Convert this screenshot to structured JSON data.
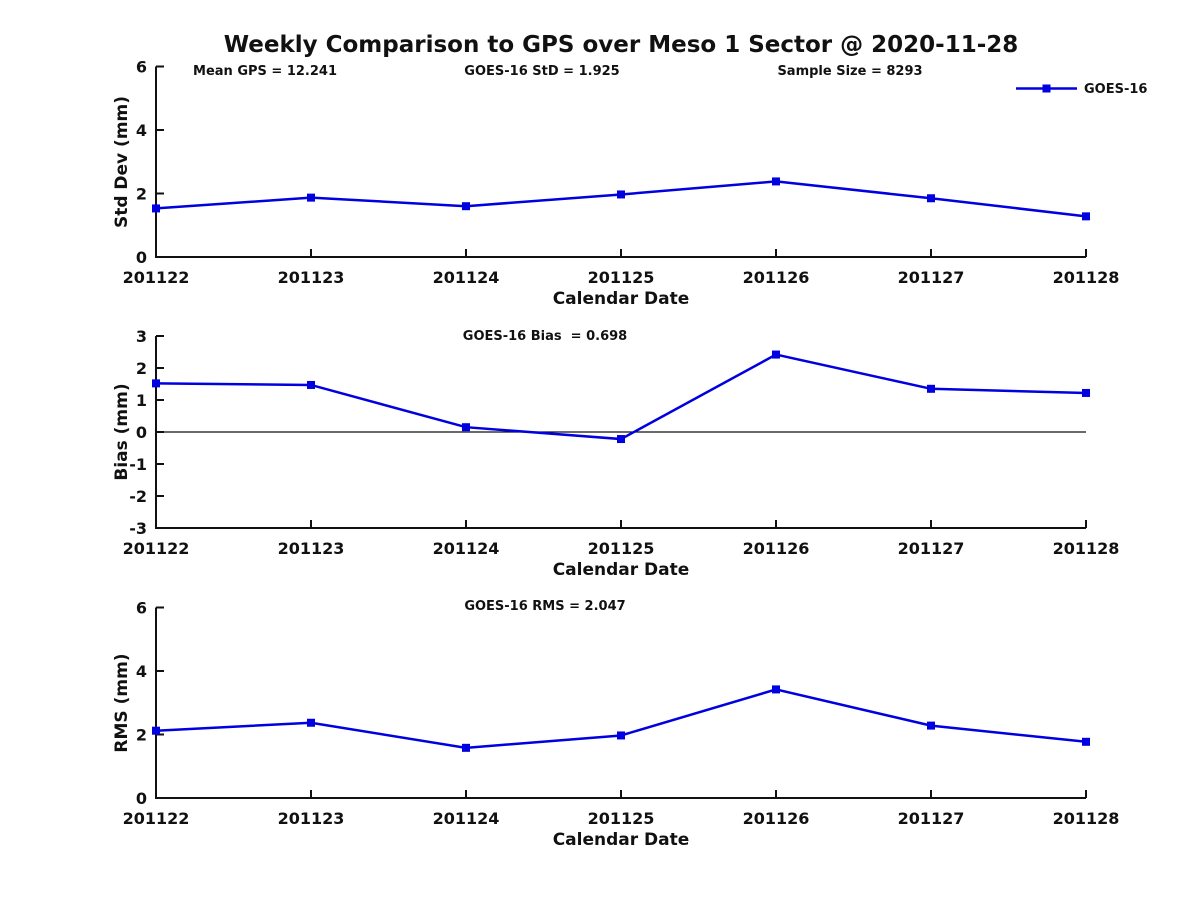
{
  "figure": {
    "title": "Weekly Comparison to GPS over Meso 1 Sector @ 2020-11-28"
  },
  "header_annotations": [
    {
      "label": "Mean GPS = 12.241"
    },
    {
      "label": "GOES-16 StD = 1.925"
    },
    {
      "label": "Sample Size = 8293"
    }
  ],
  "legend": {
    "label": "GOES-16",
    "position": "top-right",
    "color": "#0000E0"
  },
  "colors": {
    "line": "#0000E0",
    "axis": "#111111",
    "zero_line": "#111111"
  },
  "chart_data": [
    {
      "type": "line",
      "title": "Weekly Comparison to GPS over Meso 1 Sector @ 2020-11-28",
      "annotation": "",
      "categories": [
        "201122",
        "201123",
        "201124",
        "201125",
        "201126",
        "201127",
        "201128"
      ],
      "series": [
        {
          "name": "GOES-16",
          "values": [
            1.53,
            1.87,
            1.6,
            1.97,
            2.38,
            1.85,
            1.28
          ]
        }
      ],
      "xlabel": "Calendar Date",
      "ylabel": "Std Dev (mm)",
      "ylim": [
        0,
        6
      ],
      "yticks": [
        0,
        2,
        4,
        6
      ],
      "grid": false,
      "zero_line": false,
      "marker": "square"
    },
    {
      "type": "line",
      "title": "",
      "annotation": "GOES-16 Bias  = 0.698",
      "categories": [
        "201122",
        "201123",
        "201124",
        "201125",
        "201126",
        "201127",
        "201128"
      ],
      "series": [
        {
          "name": "GOES-16",
          "values": [
            1.52,
            1.47,
            0.15,
            -0.22,
            2.42,
            1.35,
            1.22
          ]
        }
      ],
      "xlabel": "Calendar Date",
      "ylabel": "Bias (mm)",
      "ylim": [
        -3,
        3
      ],
      "yticks": [
        3,
        2,
        1,
        0,
        -1,
        -2,
        -3
      ],
      "grid": false,
      "zero_line": true,
      "marker": "square"
    },
    {
      "type": "line",
      "title": "",
      "annotation": "GOES-16 RMS = 2.047",
      "categories": [
        "201122",
        "201123",
        "201124",
        "201125",
        "201126",
        "201127",
        "201128"
      ],
      "series": [
        {
          "name": "GOES-16",
          "values": [
            2.12,
            2.37,
            1.58,
            1.97,
            3.42,
            2.28,
            1.77
          ]
        }
      ],
      "xlabel": "Calendar Date",
      "ylabel": "RMS (mm)",
      "ylim": [
        0,
        6
      ],
      "yticks": [
        0,
        2,
        4,
        6
      ],
      "grid": false,
      "zero_line": false,
      "marker": "square"
    }
  ]
}
